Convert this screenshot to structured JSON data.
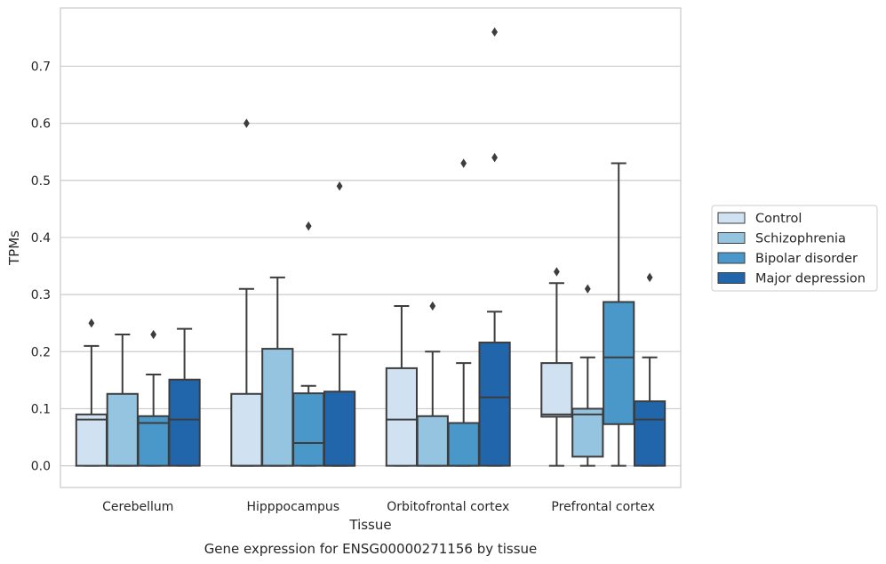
{
  "chart_data": {
    "type": "box",
    "xlabel": "Tissue",
    "ylabel": "TPMs",
    "caption": "Gene expression for ENSG00000271156 by tissue",
    "ylim": [
      -0.038,
      0.802
    ],
    "yticks": [
      "0.0",
      "0.1",
      "0.2",
      "0.3",
      "0.4",
      "0.5",
      "0.6",
      "0.7"
    ],
    "grid": true,
    "legend_position": "right, outside plot",
    "categories": [
      "Cerebellum",
      "Hipppocampus",
      "Orbitofrontal cortex",
      "Prefrontal cortex"
    ],
    "series": [
      {
        "name": "Control",
        "color": "#d0e1f2",
        "boxes": [
          {
            "whislo": 0.0,
            "q1": 0.0,
            "med": 0.081,
            "q3": 0.09,
            "whishi": 0.21,
            "fliers": [
              0.25
            ]
          },
          {
            "whislo": 0.0,
            "q1": 0.0,
            "med": 0.0,
            "q3": 0.126,
            "whishi": 0.31,
            "fliers": [
              0.6
            ]
          },
          {
            "whislo": 0.0,
            "q1": 0.0,
            "med": 0.081,
            "q3": 0.171,
            "whishi": 0.28,
            "fliers": []
          },
          {
            "whislo": 0.0,
            "q1": 0.086,
            "med": 0.09,
            "q3": 0.18,
            "whishi": 0.32,
            "fliers": [
              0.34
            ]
          }
        ]
      },
      {
        "name": "Schizophrenia",
        "color": "#94c4df",
        "boxes": [
          {
            "whislo": 0.0,
            "q1": 0.0,
            "med": 0.0,
            "q3": 0.126,
            "whishi": 0.23,
            "fliers": []
          },
          {
            "whislo": 0.0,
            "q1": 0.0,
            "med": 0.0,
            "q3": 0.205,
            "whishi": 0.33,
            "fliers": []
          },
          {
            "whislo": 0.0,
            "q1": 0.0,
            "med": 0.0,
            "q3": 0.087,
            "whishi": 0.2,
            "fliers": [
              0.28
            ]
          },
          {
            "whislo": 0.0,
            "q1": 0.016,
            "med": 0.09,
            "q3": 0.1,
            "whishi": 0.19,
            "fliers": [
              0.31
            ]
          }
        ]
      },
      {
        "name": "Bipolar disorder",
        "color": "#4a98c9",
        "boxes": [
          {
            "whislo": 0.0,
            "q1": 0.0,
            "med": 0.075,
            "q3": 0.087,
            "whishi": 0.16,
            "fliers": [
              0.23
            ]
          },
          {
            "whislo": 0.0,
            "q1": 0.0,
            "med": 0.04,
            "q3": 0.127,
            "whishi": 0.14,
            "fliers": [
              0.42
            ]
          },
          {
            "whislo": 0.0,
            "q1": 0.0,
            "med": 0.0,
            "q3": 0.075,
            "whishi": 0.18,
            "fliers": [
              0.53
            ]
          },
          {
            "whislo": 0.0,
            "q1": 0.073,
            "med": 0.19,
            "q3": 0.287,
            "whishi": 0.53,
            "fliers": []
          }
        ]
      },
      {
        "name": "Major depression",
        "color": "#2165ab",
        "boxes": [
          {
            "whislo": 0.0,
            "q1": 0.0,
            "med": 0.081,
            "q3": 0.151,
            "whishi": 0.24,
            "fliers": []
          },
          {
            "whislo": 0.0,
            "q1": 0.0,
            "med": 0.0,
            "q3": 0.13,
            "whishi": 0.23,
            "fliers": [
              0.49
            ]
          },
          {
            "whislo": 0.0,
            "q1": 0.0,
            "med": 0.12,
            "q3": 0.216,
            "whishi": 0.27,
            "fliers": [
              0.54,
              0.76
            ]
          },
          {
            "whislo": 0.0,
            "q1": 0.0,
            "med": 0.081,
            "q3": 0.113,
            "whishi": 0.19,
            "fliers": [
              0.33
            ]
          }
        ]
      }
    ]
  }
}
